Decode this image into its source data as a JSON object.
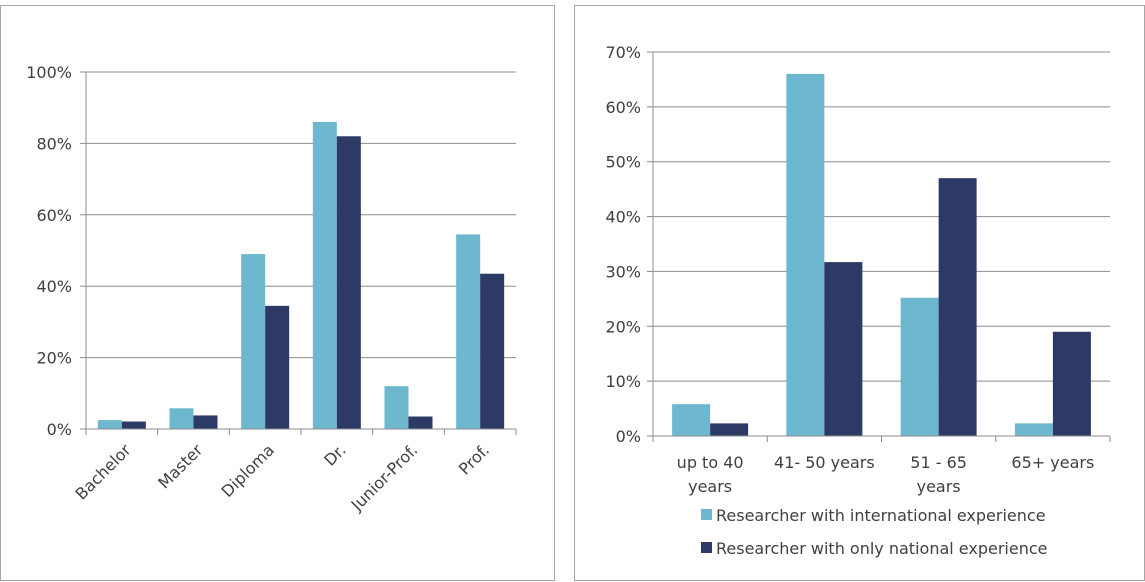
{
  "colors": {
    "international": "#6db8cf",
    "national": "#2e3a66",
    "grid": "#8c8c8c",
    "axis": "#8c8c8c"
  },
  "chart_data": [
    {
      "type": "bar",
      "title": "",
      "xlabel": "",
      "ylabel": "",
      "categories": [
        "Bachelor",
        "Master",
        "Diploma",
        "Dr.",
        "Junior-Prof.",
        "Prof."
      ],
      "ylim": [
        0,
        100
      ],
      "yticks": [
        "0%",
        "20%",
        "40%",
        "60%",
        "80%",
        "100%"
      ],
      "grid": true,
      "legend": "none",
      "series": [
        {
          "values": [
            2.5,
            5.8,
            49,
            86,
            12,
            54.5
          ]
        },
        {
          "values": [
            2.1,
            3.8,
            34.5,
            82,
            3.5,
            43.5
          ]
        }
      ]
    },
    {
      "type": "bar",
      "title": "",
      "xlabel": "",
      "ylabel": "",
      "categories": [
        [
          "up to 40",
          "years"
        ],
        [
          "41- 50 years"
        ],
        [
          "51 - 65",
          "years"
        ],
        [
          "65+ years"
        ]
      ],
      "ylim": [
        0,
        70
      ],
      "yticks": [
        "0%",
        "10%",
        "20%",
        "30%",
        "40%",
        "50%",
        "60%",
        "70%"
      ],
      "grid": true,
      "legend": "bottom",
      "series": [
        {
          "name": "Researcher with international experience",
          "values": [
            5.8,
            66,
            25.2,
            2.3
          ]
        },
        {
          "name": "Researcher with only national experience",
          "values": [
            2.3,
            31.7,
            47,
            19
          ]
        }
      ]
    }
  ]
}
